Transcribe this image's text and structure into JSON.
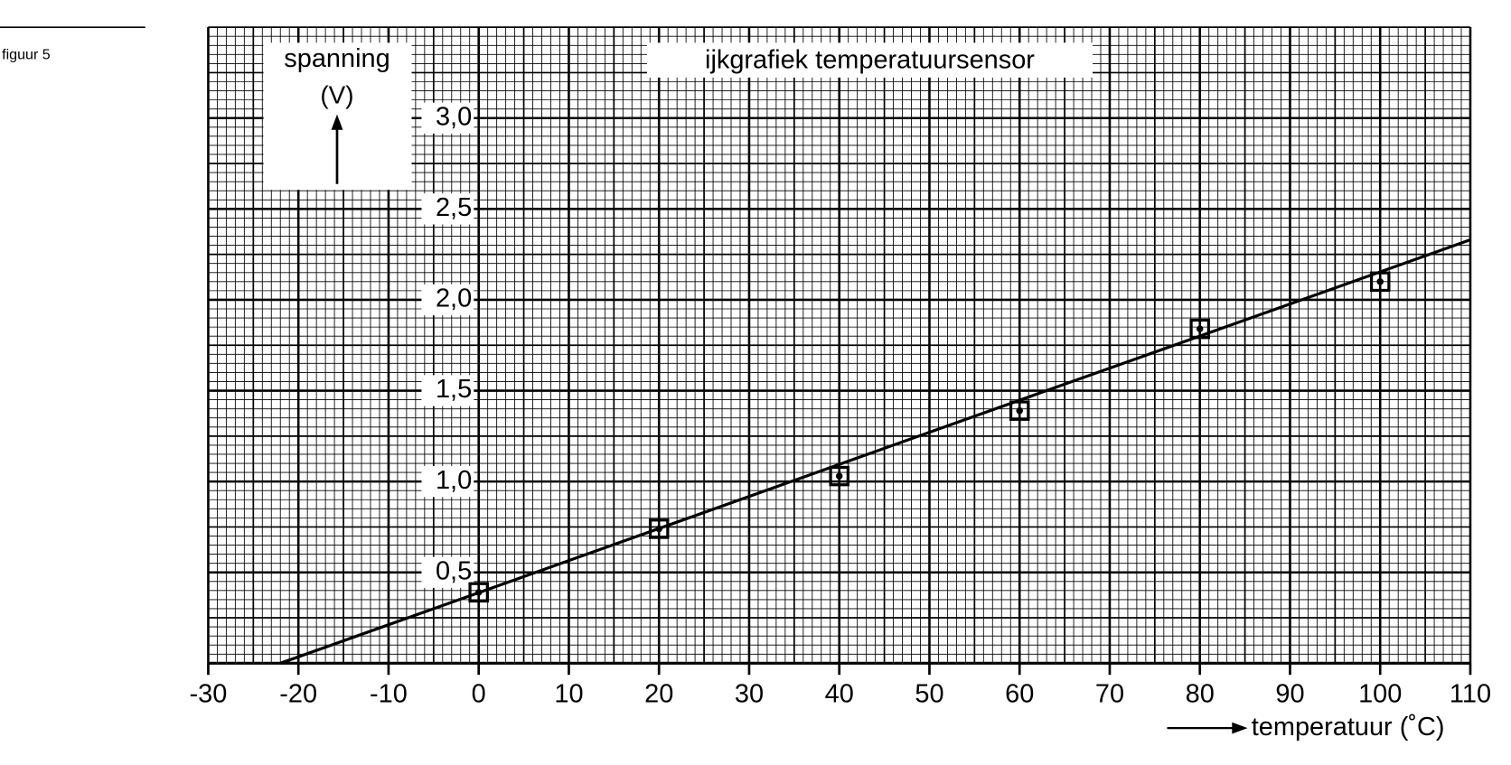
{
  "figure_label": "figuur 5",
  "chart_data": {
    "type": "scatter",
    "title": "ijkgrafiek temperatuursensor",
    "y_label": "spanning",
    "y_unit": "(V)",
    "x_label": "temperatuur (˚C)",
    "xlim": [
      -30,
      110
    ],
    "xticks": [
      -30,
      -20,
      -10,
      0,
      10,
      20,
      30,
      40,
      50,
      60,
      70,
      80,
      90,
      100,
      110
    ],
    "ylim": [
      0,
      3.5
    ],
    "yticks": [
      {
        "value": 0.5,
        "label": "0,5"
      },
      {
        "value": 1.0,
        "label": "1,0"
      },
      {
        "value": 1.5,
        "label": "1,5"
      },
      {
        "value": 2.0,
        "label": "2,0"
      },
      {
        "value": 2.5,
        "label": "2,5"
      },
      {
        "value": 3.0,
        "label": "3,0"
      }
    ],
    "grid": true,
    "color": "#000000",
    "x": [
      0,
      20,
      40,
      60,
      80,
      100
    ],
    "values": [
      0.39,
      0.74,
      1.03,
      1.39,
      1.84,
      2.1
    ],
    "fit_line": {
      "x": [
        -22,
        110
      ],
      "values": [
        0,
        2.33
      ]
    }
  }
}
